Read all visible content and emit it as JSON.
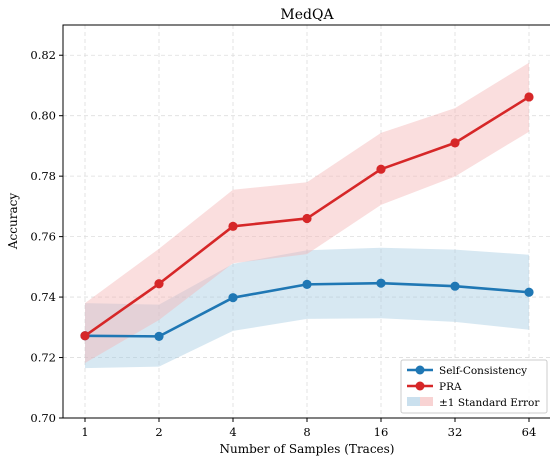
{
  "chart_data": {
    "type": "line",
    "title": "MedQA",
    "xlabel": "Number of Samples (Traces)",
    "ylabel": "Accuracy",
    "x": [
      1,
      2,
      4,
      8,
      16,
      32,
      64
    ],
    "x_tick_labels": [
      "1",
      "2",
      "4",
      "8",
      "16",
      "32",
      "64"
    ],
    "x_scale": "log2",
    "ylim": [
      0.7,
      0.83
    ],
    "y_ticks": [
      0.7,
      0.72,
      0.74,
      0.76,
      0.78,
      0.8,
      0.82
    ],
    "y_tick_labels": [
      "0.70",
      "0.72",
      "0.74",
      "0.76",
      "0.78",
      "0.80",
      "0.82"
    ],
    "grid": true,
    "legend_position": "bottom-right",
    "series": [
      {
        "name": "Self-Consistency",
        "color": "#1f77b4",
        "band_color": "#a6cbe3",
        "values": [
          0.7272,
          0.727,
          0.7398,
          0.7442,
          0.7446,
          0.7436,
          0.7416
        ],
        "band_lower": [
          0.7165,
          0.717,
          0.7288,
          0.7328,
          0.733,
          0.7318,
          0.7292
        ],
        "band_upper": [
          0.738,
          0.7375,
          0.751,
          0.7555,
          0.7563,
          0.7557,
          0.754
        ]
      },
      {
        "name": "PRA",
        "color": "#d62728",
        "band_color": "#f4b6b6",
        "values": [
          0.7272,
          0.7444,
          0.7634,
          0.766,
          0.7823,
          0.791,
          0.8062
        ],
        "band_lower": [
          0.7182,
          0.7324,
          0.7512,
          0.7542,
          0.7705,
          0.7799,
          0.7947
        ],
        "band_upper": [
          0.738,
          0.756,
          0.7755,
          0.778,
          0.7943,
          0.8025,
          0.8175
        ]
      }
    ],
    "band_legend_label": "±1 Standard Error"
  }
}
